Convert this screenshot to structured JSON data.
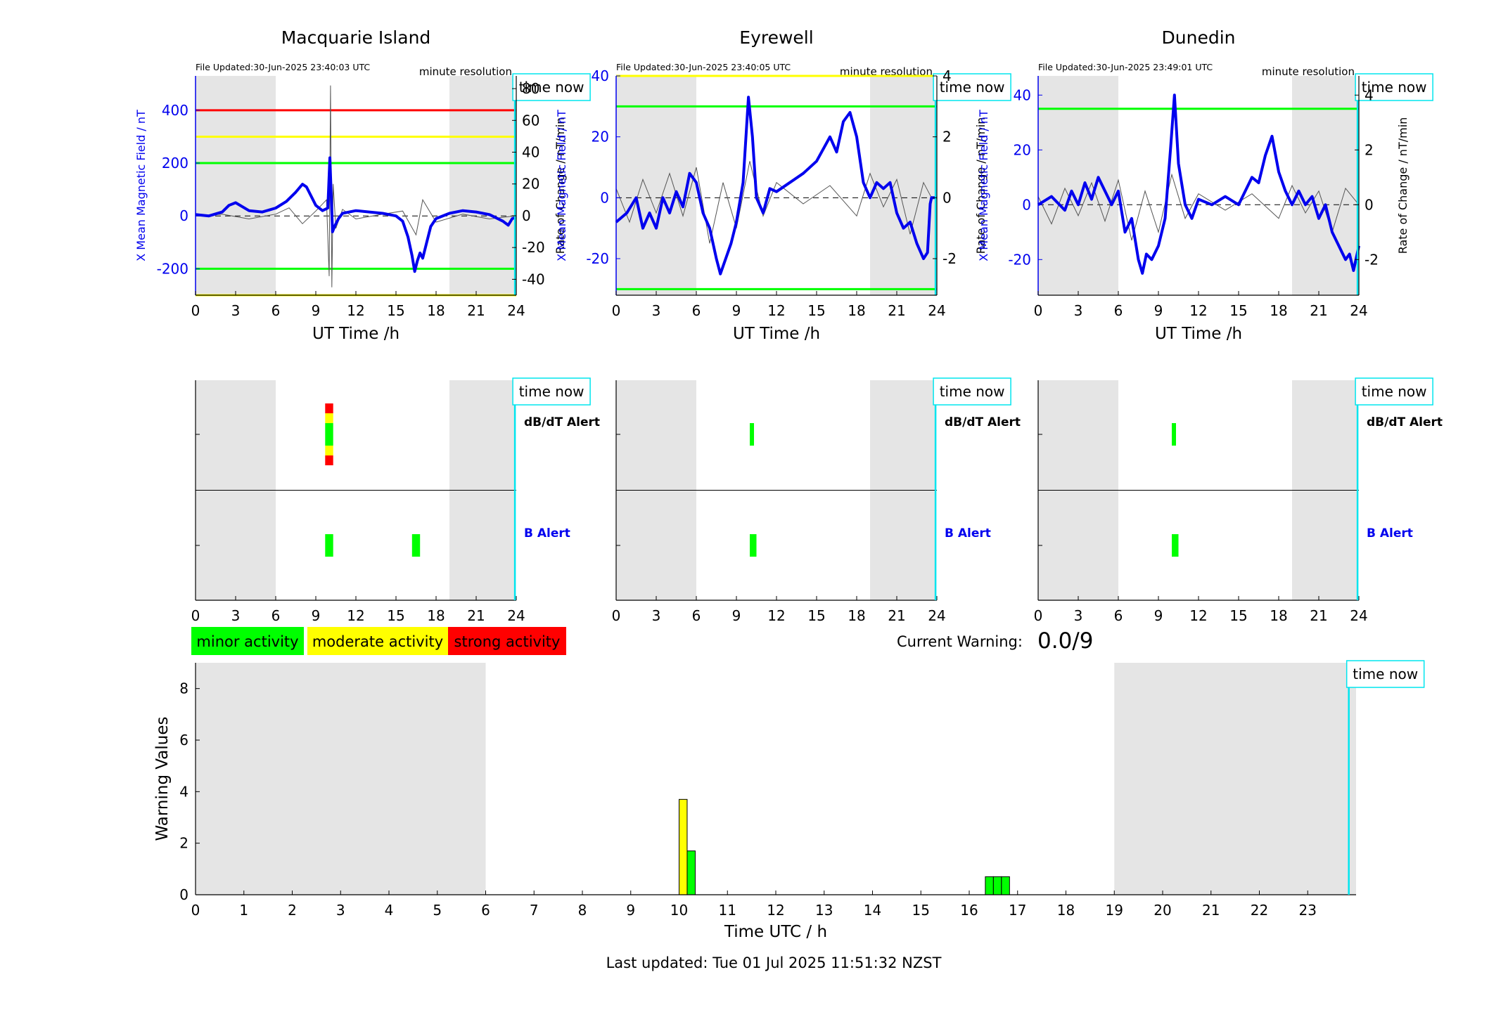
{
  "colors": {
    "night_shade": "#e5e5e5",
    "field_line": "#0000ee",
    "rate_line": "#555555",
    "time_now": "#00e5ee",
    "red": "#ff0000",
    "yellow": "#ffff00",
    "green": "#00ff00",
    "axis_blue": "#0000ee"
  },
  "common": {
    "time_now_label": "time now",
    "resolution_label": "minute resolution",
    "xlabel": "UT Time /h",
    "ylabel_left": "X Mean Magnetic Field / nT",
    "ylabel_right": "Rate of Change / nT/min",
    "dbdt_alert_label": "dB/dT Alert",
    "b_alert_label": "B Alert",
    "xticks": [
      "0",
      "3",
      "6",
      "9",
      "12",
      "15",
      "18",
      "21",
      "24"
    ]
  },
  "legend": {
    "minor": "minor activity",
    "moderate": "moderate activity",
    "strong": "strong activity"
  },
  "current_warning": {
    "label": "Current Warning:",
    "value": "0.0/9"
  },
  "footer": {
    "last_updated": "Last updated: Tue 01 Jul 2025 11:51:32 NZST"
  },
  "chart_data": [
    {
      "type": "line",
      "title": "Macquarie Island",
      "file_updated": "File Updated:30-Jun-2025 23:40:03 UTC",
      "xlim": [
        0,
        24
      ],
      "ylim": [
        -300,
        530
      ],
      "y2lim": [
        -50,
        88
      ],
      "yticks": [
        -200,
        0,
        200,
        400
      ],
      "y2ticks": [
        -40,
        -20,
        0,
        20,
        40,
        60,
        80
      ],
      "night_bands": [
        [
          0,
          6
        ],
        [
          19,
          24
        ]
      ],
      "time_now": 23.9,
      "thresholds": [
        {
          "value": 400,
          "color": "red"
        },
        {
          "value": 300,
          "color": "yellow"
        },
        {
          "value": 200,
          "color": "green"
        },
        {
          "value": -200,
          "color": "green"
        },
        {
          "value": -300,
          "color": "yellow"
        }
      ],
      "field_series": {
        "name": "X Mean Magnetic Field",
        "x": [
          0,
          1,
          2,
          2.5,
          3,
          4,
          5,
          6,
          6.8,
          7.5,
          8,
          8.3,
          8.7,
          9,
          9.5,
          9.9,
          10.05,
          10.15,
          10.25,
          10.4,
          10.7,
          11,
          12,
          13,
          14,
          15,
          15.5,
          15.9,
          16.2,
          16.4,
          16.6,
          16.8,
          17,
          17.3,
          17.6,
          18,
          19,
          20,
          21,
          22,
          23,
          23.4,
          23.7,
          24
        ],
        "y": [
          5,
          0,
          15,
          40,
          50,
          20,
          15,
          30,
          55,
          90,
          120,
          110,
          70,
          40,
          20,
          30,
          220,
          80,
          -60,
          -40,
          -10,
          10,
          20,
          15,
          10,
          0,
          -20,
          -80,
          -150,
          -210,
          -170,
          -140,
          -160,
          -100,
          -40,
          -10,
          10,
          20,
          15,
          5,
          -20,
          -35,
          -10,
          -5
        ]
      },
      "rate_series": {
        "name": "Rate of Change",
        "x": [
          0,
          2,
          4,
          6,
          7,
          8,
          9,
          9.8,
          10,
          10.1,
          10.2,
          10.3,
          10.5,
          11,
          12,
          14,
          15.5,
          16.5,
          17,
          18,
          20,
          22,
          24
        ],
        "y": [
          0,
          1,
          -2,
          1,
          5,
          -5,
          3,
          10,
          -38,
          82,
          -45,
          20,
          -8,
          4,
          -2,
          1,
          3,
          -12,
          10,
          -4,
          1,
          -2,
          0
        ]
      },
      "alerts": {
        "dbdt": [
          {
            "start": 9.7,
            "end": 10.3,
            "levels": [
              "red",
              "yellow",
              "green",
              "yellow",
              "red"
            ]
          }
        ],
        "b": [
          {
            "start": 9.7,
            "end": 10.3,
            "color": "green"
          },
          {
            "start": 16.2,
            "end": 16.8,
            "color": "green"
          }
        ]
      }
    },
    {
      "type": "line",
      "title": "Eyrewell",
      "file_updated": "File Updated:30-Jun-2025 23:40:05 UTC",
      "xlim": [
        0,
        24
      ],
      "ylim": [
        -32,
        40
      ],
      "y2lim": [
        -3.2,
        4
      ],
      "yticks": [
        -20,
        0,
        20,
        40
      ],
      "y2ticks": [
        -2,
        0,
        2,
        4
      ],
      "night_bands": [
        [
          0,
          6
        ],
        [
          19,
          24
        ]
      ],
      "time_now": 23.9,
      "thresholds": [
        {
          "value": 40,
          "color": "yellow"
        },
        {
          "value": 30,
          "color": "green"
        },
        {
          "value": -30,
          "color": "green"
        }
      ],
      "field_series": {
        "name": "X Mean Magnetic Field",
        "x": [
          0,
          0.8,
          1.5,
          2,
          2.5,
          3,
          3.5,
          4,
          4.5,
          5,
          5.5,
          6,
          6.5,
          7,
          7.5,
          7.8,
          8.2,
          8.6,
          9,
          9.5,
          9.9,
          10.2,
          10.5,
          11,
          11.5,
          12,
          13,
          14,
          15,
          16,
          16.5,
          17,
          17.5,
          18,
          18.5,
          19,
          19.5,
          20,
          20.5,
          21,
          21.5,
          22,
          22.5,
          23,
          23.3,
          23.5,
          23.6,
          24
        ],
        "y": [
          -8,
          -5,
          0,
          -10,
          -5,
          -10,
          0,
          -5,
          2,
          -3,
          8,
          5,
          -5,
          -10,
          -20,
          -25,
          -20,
          -15,
          -8,
          5,
          33,
          20,
          0,
          -5,
          3,
          2,
          5,
          8,
          12,
          20,
          15,
          25,
          28,
          20,
          5,
          0,
          5,
          3,
          5,
          -5,
          -10,
          -8,
          -15,
          -20,
          -18,
          -2,
          0,
          0
        ]
      },
      "rate_series": {
        "name": "Rate of Change",
        "x": [
          0,
          1,
          2,
          3,
          4,
          5,
          6,
          7,
          8,
          9,
          10,
          11,
          12,
          14,
          16,
          18,
          19,
          20,
          21,
          22,
          23,
          23.6
        ],
        "y": [
          0.3,
          -0.8,
          0.6,
          -0.5,
          0.8,
          -0.6,
          1.0,
          -1.5,
          0.5,
          -1.0,
          1.2,
          -0.6,
          0.5,
          -0.2,
          0.4,
          -0.6,
          0.8,
          -0.3,
          0.6,
          -1.2,
          0.5,
          0
        ]
      },
      "alerts": {
        "dbdt": [
          {
            "start": 10.0,
            "end": 10.3,
            "levels": [
              "green"
            ]
          }
        ],
        "b": [
          {
            "start": 10.0,
            "end": 10.5,
            "color": "green"
          }
        ]
      }
    },
    {
      "type": "line",
      "title": "Dunedin",
      "file_updated": "File Updated:30-Jun-2025 23:49:01 UTC",
      "xlim": [
        0,
        24
      ],
      "ylim": [
        -33,
        47
      ],
      "y2lim": [
        -3.3,
        4.7
      ],
      "yticks": [
        -20,
        0,
        20,
        40
      ],
      "y2ticks": [
        -2,
        0,
        2,
        4
      ],
      "night_bands": [
        [
          0,
          6
        ],
        [
          19,
          24
        ]
      ],
      "time_now": 23.9,
      "thresholds": [
        {
          "value": 35,
          "color": "green"
        }
      ],
      "field_series": {
        "name": "X Mean Magnetic Field",
        "x": [
          0,
          1,
          2,
          2.5,
          3,
          3.5,
          4,
          4.5,
          5,
          5.5,
          6,
          6.5,
          7,
          7.5,
          7.8,
          8.1,
          8.5,
          9,
          9.5,
          9.9,
          10.2,
          10.5,
          11,
          11.5,
          12,
          13,
          14,
          15,
          16,
          16.5,
          17,
          17.5,
          18,
          18.5,
          19,
          19.5,
          20,
          20.5,
          21,
          21.5,
          22,
          22.5,
          23,
          23.3,
          23.6,
          24
        ],
        "y": [
          0,
          3,
          -2,
          5,
          0,
          8,
          2,
          10,
          5,
          0,
          5,
          -10,
          -5,
          -20,
          -25,
          -18,
          -20,
          -15,
          -5,
          20,
          40,
          15,
          0,
          -5,
          2,
          0,
          3,
          0,
          10,
          8,
          18,
          25,
          12,
          5,
          0,
          5,
          0,
          3,
          -5,
          0,
          -10,
          -15,
          -20,
          -18,
          -24,
          -15
        ]
      },
      "rate_series": {
        "name": "Rate of Change",
        "x": [
          0,
          1,
          2,
          3,
          4,
          5,
          6,
          7,
          8,
          9,
          10,
          11,
          12,
          14,
          16,
          18,
          19,
          20,
          21,
          22,
          23,
          24
        ],
        "y": [
          0.3,
          -0.7,
          0.6,
          -0.4,
          0.8,
          -0.6,
          0.9,
          -1.3,
          0.5,
          -1.0,
          1.1,
          -0.5,
          0.4,
          -0.2,
          0.4,
          -0.5,
          0.7,
          -0.3,
          0.5,
          -1.0,
          0.6,
          0
        ]
      },
      "alerts": {
        "dbdt": [
          {
            "start": 10.0,
            "end": 10.3,
            "levels": [
              "green"
            ]
          }
        ],
        "b": [
          {
            "start": 10.0,
            "end": 10.5,
            "color": "green"
          }
        ]
      }
    },
    {
      "type": "bar",
      "xlabel": "Time UTC / h",
      "ylabel": "Warning Values",
      "xlim": [
        0,
        24
      ],
      "ylim": [
        0,
        9
      ],
      "xticks": [
        "0",
        "1",
        "2",
        "3",
        "4",
        "5",
        "6",
        "7",
        "8",
        "9",
        "10",
        "11",
        "12",
        "13",
        "14",
        "15",
        "16",
        "17",
        "18",
        "19",
        "20",
        "21",
        "22",
        "23"
      ],
      "yticks": [
        "0",
        "2",
        "4",
        "6",
        "8"
      ],
      "night_bands": [
        [
          0,
          6
        ],
        [
          19,
          24
        ]
      ],
      "time_now": 23.85,
      "bars": [
        {
          "x": 10.0,
          "value": 3.7,
          "color": "yellow"
        },
        {
          "x": 10.167,
          "value": 1.7,
          "color": "green"
        },
        {
          "x": 16.333,
          "value": 0.7,
          "color": "green"
        },
        {
          "x": 16.5,
          "value": 0.7,
          "color": "green"
        },
        {
          "x": 16.667,
          "value": 0.7,
          "color": "green"
        }
      ]
    }
  ]
}
